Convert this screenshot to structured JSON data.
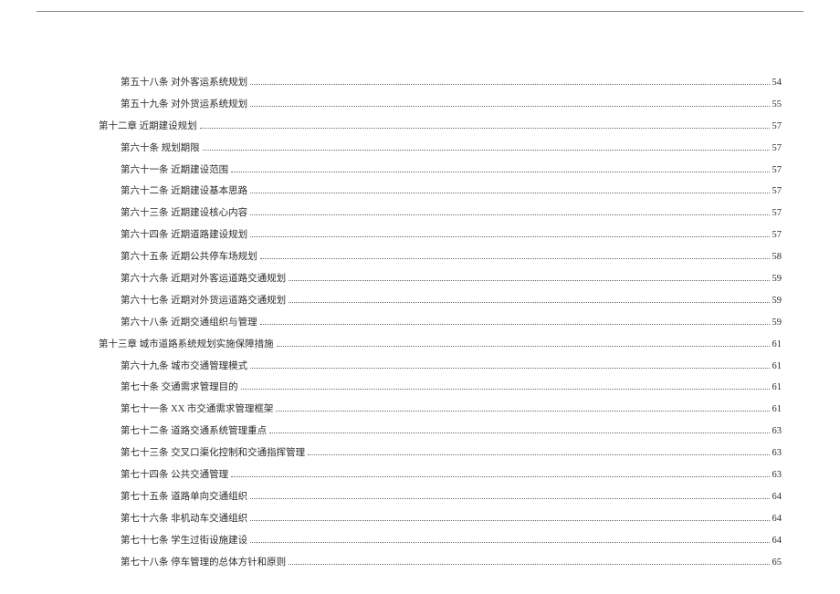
{
  "toc": [
    {
      "level": 1,
      "label": "第五十八条  对外客运系统规划",
      "page": "54"
    },
    {
      "level": 1,
      "label": "第五十九条  对外货运系统规划",
      "page": "55"
    },
    {
      "level": 0,
      "label": "第十二章  近期建设规划",
      "page": "57"
    },
    {
      "level": 1,
      "label": "第六十条  规划期限",
      "page": "57"
    },
    {
      "level": 1,
      "label": "第六十一条  近期建设范围",
      "page": "57"
    },
    {
      "level": 1,
      "label": "第六十二条  近期建设基本思路",
      "page": "57"
    },
    {
      "level": 1,
      "label": "第六十三条  近期建设核心内容",
      "page": "57"
    },
    {
      "level": 1,
      "label": "第六十四条  近期道路建设规划",
      "page": "57"
    },
    {
      "level": 1,
      "label": "第六十五条  近期公共停车场规划",
      "page": "58"
    },
    {
      "level": 1,
      "label": "第六十六条  近期对外客运道路交通规划",
      "page": "59"
    },
    {
      "level": 1,
      "label": "第六十七条  近期对外货运道路交通规划",
      "page": "59"
    },
    {
      "level": 1,
      "label": "第六十八条  近期交通组织与管理",
      "page": "59"
    },
    {
      "level": 0,
      "label": "第十三章  城市道路系统规划实施保障措施",
      "page": "61"
    },
    {
      "level": 1,
      "label": "第六十九条  城市交通管理模式",
      "page": "61"
    },
    {
      "level": 1,
      "label": "第七十条    交通需求管理目的",
      "page": "61"
    },
    {
      "level": 1,
      "label": "第七十一条   XX 市交通需求管理框架",
      "page": "61"
    },
    {
      "level": 1,
      "label": "第七十二条  道路交通系统管理重点",
      "page": "63"
    },
    {
      "level": 1,
      "label": "第七十三条    交叉口渠化控制和交通指挥管理",
      "page": "63"
    },
    {
      "level": 1,
      "label": "第七十四条  公共交通管理",
      "page": "63"
    },
    {
      "level": 1,
      "label": "第七十五条  道路单向交通组织",
      "page": "64"
    },
    {
      "level": 1,
      "label": "第七十六条  非机动车交通组织",
      "page": "64"
    },
    {
      "level": 1,
      "label": "第七十七条  学生过街设施建设",
      "page": "64"
    },
    {
      "level": 1,
      "label": "第七十八条  停车管理的总体方针和原则",
      "page": "65"
    }
  ]
}
